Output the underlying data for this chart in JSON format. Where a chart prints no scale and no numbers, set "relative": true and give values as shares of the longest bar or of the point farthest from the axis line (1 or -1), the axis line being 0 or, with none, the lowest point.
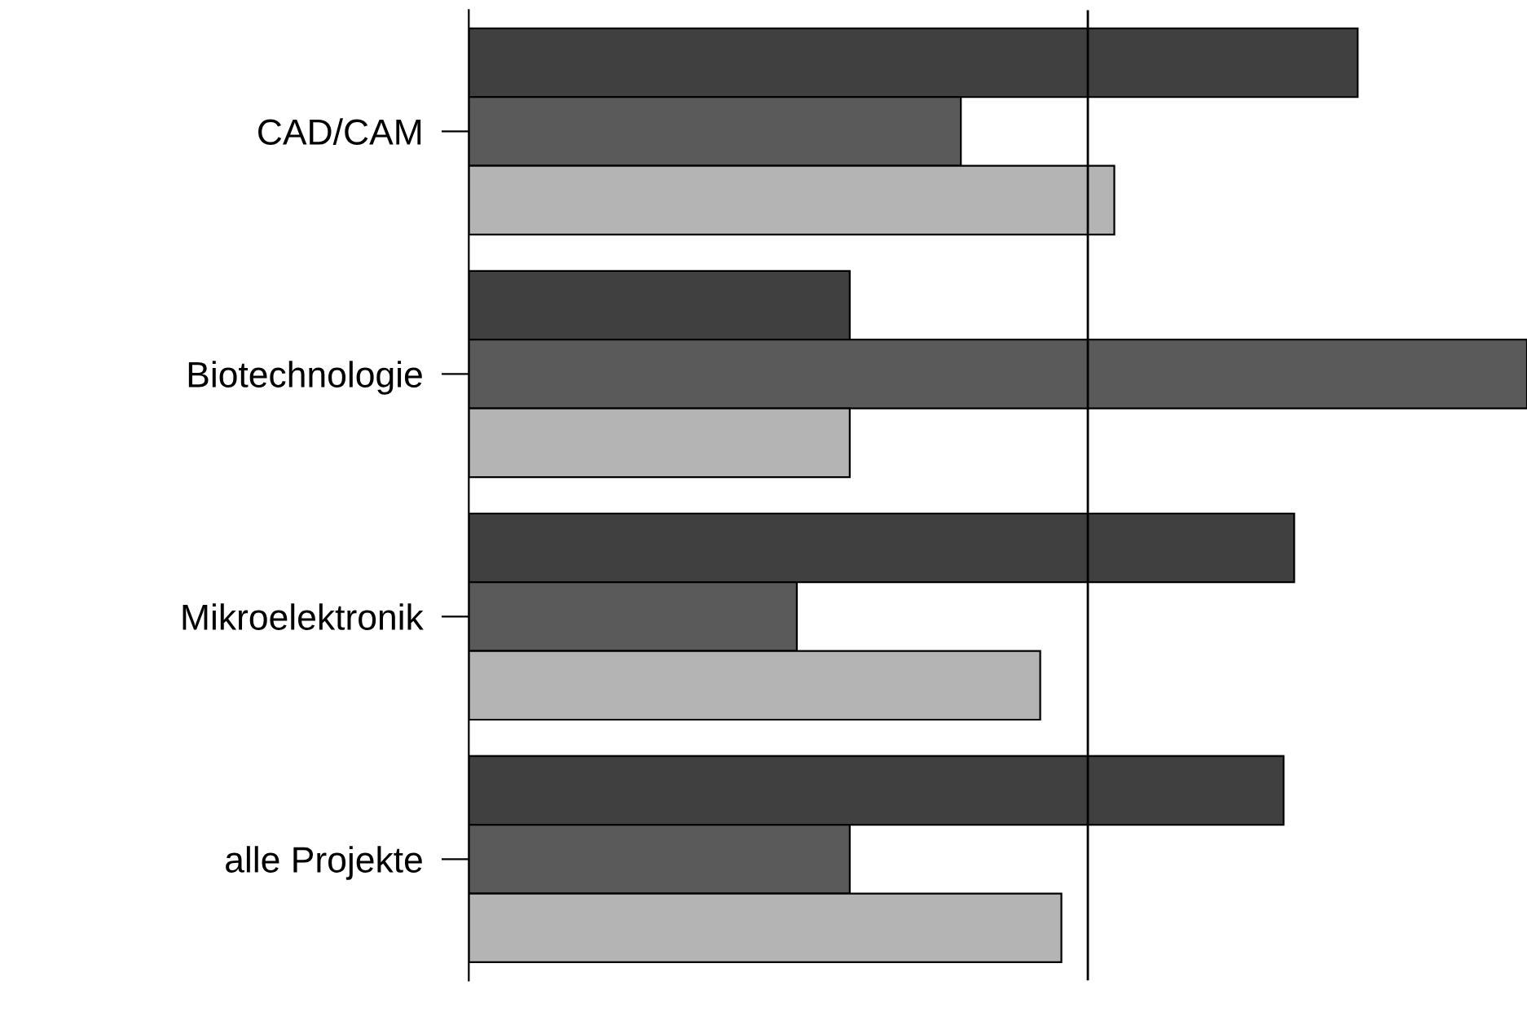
{
  "chart_data": {
    "type": "bar",
    "orientation": "horizontal",
    "relative": true,
    "categories": [
      "CAD/CAM",
      "Biotechnologie",
      "Mikroelektronik",
      "alle Projekte"
    ],
    "series": [
      {
        "color": "#404040",
        "values": [
          0.84,
          0.36,
          0.78,
          0.77
        ]
      },
      {
        "color": "#5a5a5a",
        "values": [
          0.465,
          1,
          0.31,
          0.36
        ]
      },
      {
        "color": "#b4b4b4",
        "values": [
          0.61,
          0.36,
          0.54,
          0.56
        ]
      }
    ],
    "ref_lines": [
      {
        "axis": "x",
        "value": 0.585,
        "color": "#000000"
      }
    ]
  }
}
